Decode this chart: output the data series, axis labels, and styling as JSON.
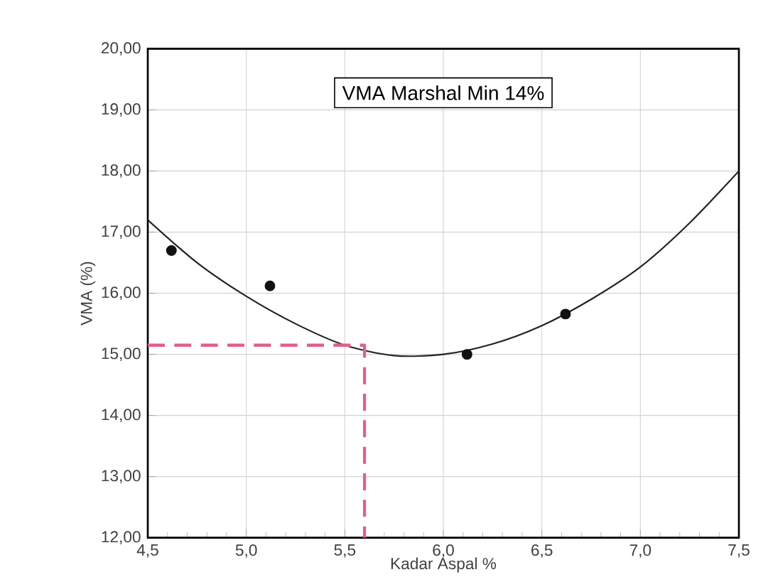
{
  "chart_data": {
    "type": "scatter",
    "xlabel": "Kadar Aspal %",
    "ylabel": "VMA (%)",
    "annotations": [
      "VMA Marshal Min 14%"
    ],
    "xlim": [
      4.5,
      7.5
    ],
    "xticks": [
      {
        "value": 4.5,
        "label": "4,5"
      },
      {
        "value": 5.0,
        "label": "5,0"
      },
      {
        "value": 5.5,
        "label": "5,5"
      },
      {
        "value": 6.0,
        "label": "6,0"
      },
      {
        "value": 6.5,
        "label": "6,5"
      },
      {
        "value": 7.0,
        "label": "7,0"
      },
      {
        "value": 7.5,
        "label": "7,5"
      }
    ],
    "ylim": [
      12,
      20
    ],
    "yticks": [
      {
        "value": 12,
        "label": "12,00"
      },
      {
        "value": 13,
        "label": "13,00"
      },
      {
        "value": 14,
        "label": "14,00"
      },
      {
        "value": 15,
        "label": "15,00"
      },
      {
        "value": 16,
        "label": "16,00"
      },
      {
        "value": 17,
        "label": "17,00"
      },
      {
        "value": 18,
        "label": "18,00"
      },
      {
        "value": 19,
        "label": "19,00"
      },
      {
        "value": 20,
        "label": "20,00"
      }
    ],
    "grid": true,
    "series": [
      {
        "color": "#111111",
        "marker": "circle",
        "x": [
          4.62,
          5.12,
          6.12,
          6.62
        ],
        "values": [
          16.7,
          16.12,
          15.0,
          15.66
        ]
      },
      {
        "type": "line",
        "color": "#222222",
        "marker": "none",
        "line_style": "solid",
        "x": [
          4.5,
          4.75,
          5.0,
          5.25,
          5.5,
          5.75,
          6.0,
          6.25,
          6.5,
          6.75,
          7.0,
          7.25,
          7.5
        ],
        "values": [
          17.2,
          16.5,
          15.95,
          15.5,
          15.15,
          14.98,
          15.0,
          15.17,
          15.47,
          15.9,
          16.43,
          17.15,
          18.0
        ]
      },
      {
        "type": "line",
        "color": "#e0608a",
        "marker": "none",
        "line_style": "dashed",
        "x": [
          4.5,
          5.6,
          5.6
        ],
        "values": [
          15.15,
          15.15,
          12
        ]
      }
    ]
  }
}
